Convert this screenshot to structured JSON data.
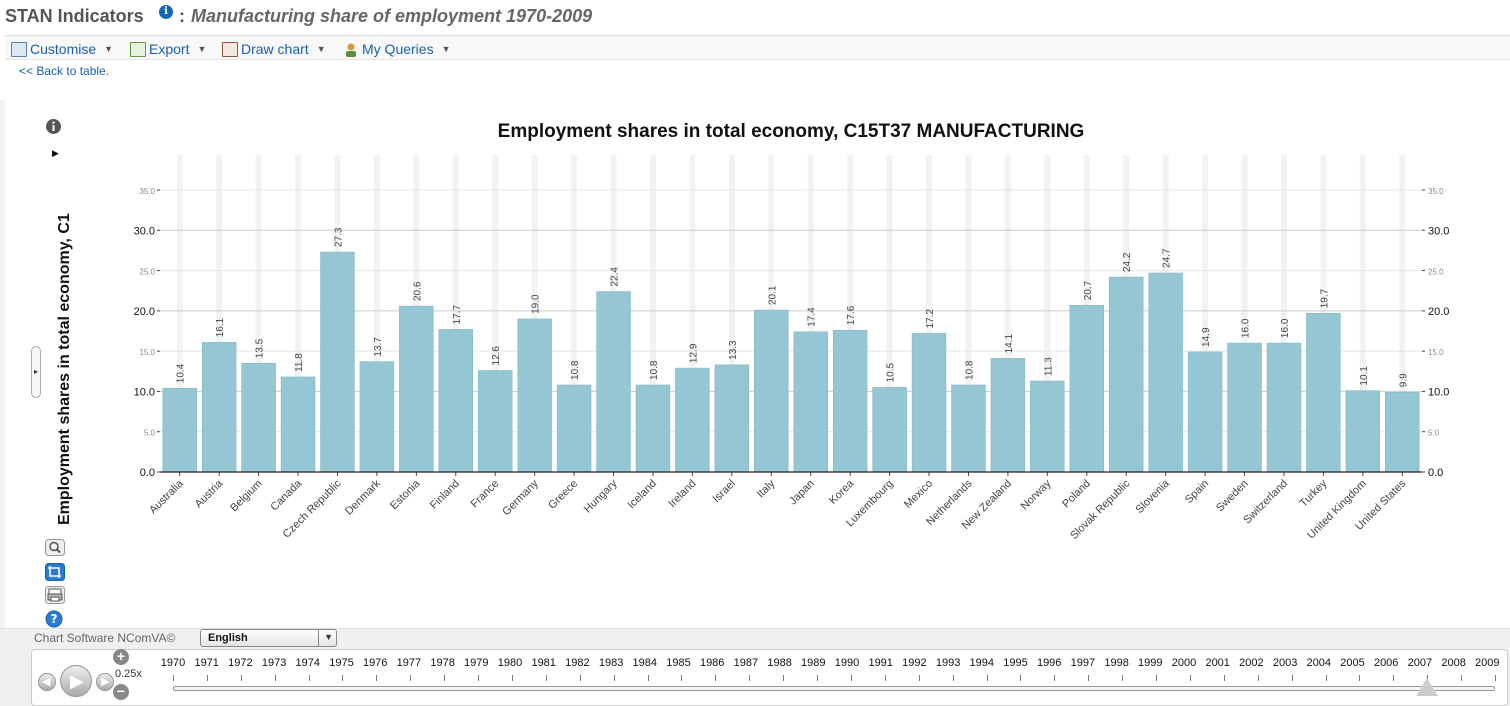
{
  "header": {
    "app_title": "STAN Indicators",
    "info_glyph": "i",
    "separator": ":",
    "subtitle": "Manufacturing share of employment 1970-2009"
  },
  "toolbar": {
    "customise": "Customise",
    "export": "Export",
    "draw_chart": "Draw chart",
    "my_queries": "My Queries"
  },
  "back_link": "<< Back to table.",
  "side": {
    "ylabel": "Employment shares in total economy, C1"
  },
  "chart_data": {
    "type": "bar",
    "title": "Employment shares in total economy, C15T37 MANUFACTURING",
    "ylabel": "Employment shares in total economy, C1",
    "ylim": [
      0,
      35
    ],
    "yticks_major": [
      "0.0",
      "10.0",
      "20.0",
      "30.0"
    ],
    "yticks_minor": [
      "5.0",
      "15.0",
      "25.0",
      "35.0"
    ],
    "categories": [
      "Australia",
      "Austria",
      "Belgium",
      "Canada",
      "Czech Republic",
      "Denmark",
      "Estonia",
      "Finland",
      "France",
      "Germany",
      "Greece",
      "Hungary",
      "Iceland",
      "Ireland",
      "Israel",
      "Italy",
      "Japan",
      "Korea",
      "Luxembourg",
      "Mexico",
      "Netherlands",
      "New Zealand",
      "Norway",
      "Poland",
      "Slovak Republic",
      "Slovenia",
      "Spain",
      "Sweden",
      "Switzerland",
      "Turkey",
      "United Kingdom",
      "United States"
    ],
    "values": [
      10.4,
      16.1,
      13.5,
      11.8,
      27.3,
      13.7,
      20.6,
      17.7,
      12.6,
      19.0,
      10.8,
      22.4,
      10.8,
      12.9,
      13.3,
      20.1,
      17.4,
      17.6,
      10.5,
      17.2,
      10.8,
      14.1,
      11.3,
      20.7,
      24.2,
      24.7,
      14.9,
      16.0,
      16.0,
      19.7,
      10.1,
      9.9
    ],
    "bar_color": "#95c6d3"
  },
  "footer": {
    "credit": "Chart Software NComVA©",
    "language": "English",
    "speed": "0.25x",
    "zoom_in": "+",
    "zoom_out": "−",
    "years": [
      "1970",
      "1971",
      "1972",
      "1973",
      "1974",
      "1975",
      "1976",
      "1977",
      "1978",
      "1979",
      "1980",
      "1981",
      "1982",
      "1983",
      "1984",
      "1985",
      "1986",
      "1987",
      "1988",
      "1989",
      "1990",
      "1991",
      "1992",
      "1993",
      "1994",
      "1995",
      "1996",
      "1997",
      "1998",
      "1999",
      "2000",
      "2001",
      "2002",
      "2003",
      "2004",
      "2005",
      "2006",
      "2007",
      "2008",
      "2009"
    ],
    "selected_year": "2007"
  }
}
